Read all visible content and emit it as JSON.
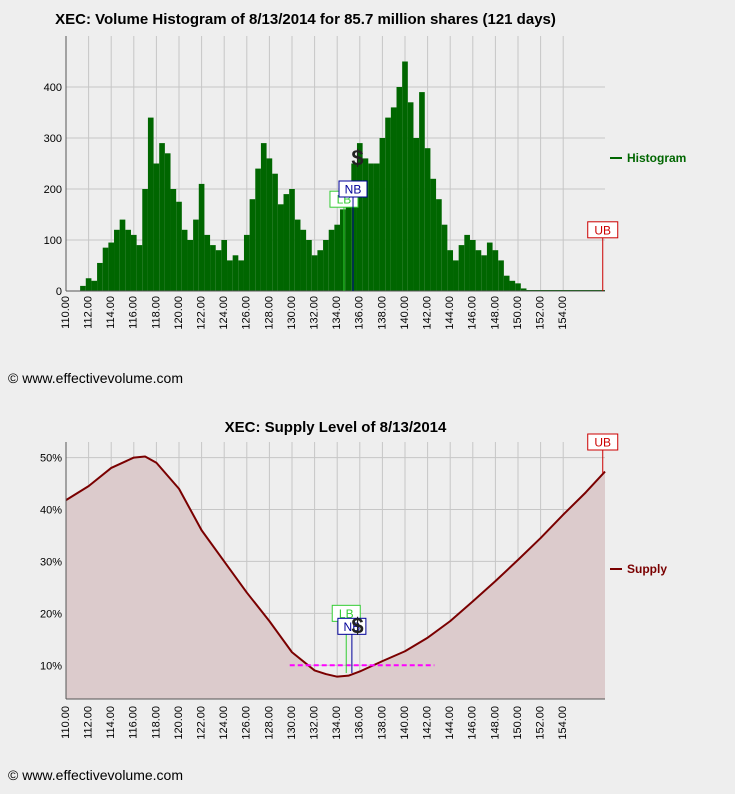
{
  "copyright": "© www.effectivevolume.com",
  "chart_data": [
    {
      "type": "bar",
      "title": "XEC: Volume Histogram of 8/13/2014 for 85.7 million shares (121 days)",
      "legend_label": "Histogram",
      "legend_position": "right",
      "color": "#006600",
      "grid": true,
      "xlim": [
        110,
        157.7
      ],
      "ylim": [
        0,
        500
      ],
      "x_tick_labels": [
        "110.00",
        "112.00",
        "114.00",
        "116.00",
        "118.00",
        "120.00",
        "122.00",
        "124.00",
        "126.00",
        "128.00",
        "130.00",
        "132.00",
        "134.00",
        "136.00",
        "138.00",
        "140.00",
        "142.00",
        "144.00",
        "146.00",
        "148.00",
        "150.00",
        "152.00",
        "154.00"
      ],
      "y_tick_labels": [
        "0",
        "100",
        "200",
        "300",
        "400"
      ],
      "series": [
        {
          "x": [
            111.5,
            112.0,
            112.5,
            113.0,
            113.5,
            114.0,
            114.5,
            115.0,
            115.5,
            116.0,
            116.5,
            117.0,
            117.5,
            118.0,
            118.5,
            119.0,
            119.5,
            120.0,
            120.5,
            121.0,
            121.5,
            122.0,
            122.5,
            123.0,
            123.5,
            124.0,
            124.5,
            125.0,
            125.5,
            126.0,
            126.5,
            127.0,
            127.5,
            128.0,
            128.5,
            129.0,
            129.5,
            130.0,
            130.5,
            131.0,
            131.5,
            132.0,
            132.5,
            133.0,
            133.5,
            134.0,
            134.5,
            135.0,
            135.5,
            136.0,
            136.5,
            137.0,
            137.5,
            138.0,
            138.5,
            139.0,
            139.5,
            140.0,
            140.5,
            141.0,
            141.5,
            142.0,
            142.5,
            143.0,
            143.5,
            144.0,
            144.5,
            145.0,
            145.5,
            146.0,
            146.5,
            147.0,
            147.5,
            148.0,
            148.5,
            149.0,
            149.5,
            150.0,
            150.5
          ],
          "values": [
            10,
            25,
            20,
            55,
            85,
            95,
            120,
            140,
            120,
            110,
            90,
            200,
            340,
            250,
            290,
            270,
            200,
            175,
            120,
            100,
            140,
            210,
            110,
            90,
            80,
            100,
            60,
            70,
            60,
            110,
            180,
            240,
            290,
            260,
            230,
            170,
            190,
            200,
            140,
            120,
            100,
            70,
            80,
            100,
            120,
            130,
            160,
            200,
            250,
            290,
            260,
            250,
            250,
            300,
            340,
            360,
            400,
            450,
            370,
            300,
            390,
            280,
            220,
            180,
            130,
            80,
            60,
            90,
            110,
            100,
            80,
            70,
            95,
            80,
            60,
            30,
            20,
            15,
            5
          ]
        }
      ],
      "annotations": {
        "lb": {
          "label": "LB",
          "x": 134.6,
          "y": 180
        },
        "nb": {
          "label": "NB",
          "x": 135.4,
          "y": 200
        },
        "dollar": {
          "label": "$",
          "x": 135.8,
          "y": 260
        },
        "ub": {
          "label": "UB",
          "x": 157.5,
          "y": 120
        }
      }
    },
    {
      "type": "area",
      "title": "XEC: Supply Level of 8/13/2014",
      "legend_label": "Supply",
      "legend_position": "right",
      "color": "#7a0000",
      "fill": "#dccbcc",
      "grid": true,
      "xlim": [
        110,
        157.7
      ],
      "ylim": [
        3.5,
        53
      ],
      "x_tick_labels": [
        "110.00",
        "112.00",
        "114.00",
        "116.00",
        "118.00",
        "120.00",
        "122.00",
        "124.00",
        "126.00",
        "128.00",
        "130.00",
        "132.00",
        "134.00",
        "136.00",
        "138.00",
        "140.00",
        "142.00",
        "144.00",
        "146.00",
        "148.00",
        "150.00",
        "152.00",
        "154.00"
      ],
      "y_tick_labels": [
        "10%",
        "20%",
        "30%",
        "40%",
        "50%"
      ],
      "series": [
        {
          "x": [
            110,
            112,
            114,
            116,
            117,
            118,
            120,
            122,
            124,
            126,
            128,
            130,
            132,
            133,
            134,
            135,
            136,
            138,
            140,
            142,
            144,
            146,
            148,
            150,
            152,
            154,
            156,
            157.7
          ],
          "values": [
            41.8,
            44.5,
            48,
            50,
            50.2,
            49,
            44,
            36,
            30,
            24,
            18.5,
            12.5,
            9,
            8.3,
            7.8,
            8,
            8.8,
            10.8,
            12.7,
            15.3,
            18.5,
            22.3,
            26.2,
            30.3,
            34.5,
            39,
            43.3,
            47.3
          ]
        }
      ],
      "reference_line": {
        "y": 10,
        "x": [
          129.8,
          142.6
        ],
        "color": "#ff00ff"
      },
      "annotations": {
        "lb": {
          "label": "LB",
          "x": 134.8,
          "y": 20
        },
        "nb": {
          "label": "NB",
          "x": 135.3,
          "y": 17.5
        },
        "dollar": {
          "label": "$",
          "x": 135.8,
          "y": 17.5
        },
        "ub": {
          "label": "UB",
          "x": 157.5,
          "y": 53
        }
      }
    }
  ]
}
